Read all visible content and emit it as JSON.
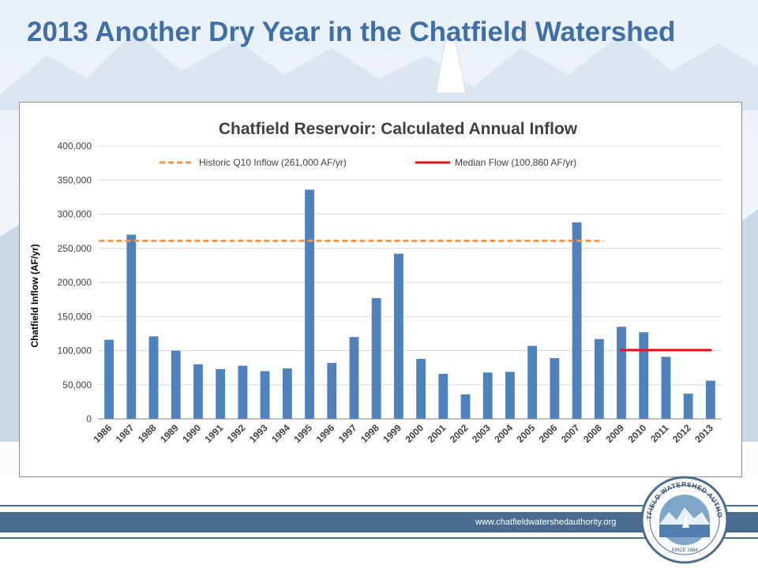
{
  "slide": {
    "title": "2013 Another Dry Year in the Chatfield Watershed",
    "website": "www.chatfieldwatershedauthority.org"
  },
  "logo": {
    "ring_text": "CHATFIELD WATERSHED AUTHORITY",
    "since_text": "SINCE 1984"
  },
  "colors": {
    "title": "#3f6fa6",
    "bar": "#4f81bd",
    "q10_line": "#f79646",
    "median_line": "#e0151c",
    "footer": "#4b6c8e"
  },
  "chart_data": {
    "type": "bar",
    "title": "Chatfield Reservoir: Calculated Annual Inflow",
    "xlabel": "",
    "ylabel": "Chatfield Inflow (AF/yr)",
    "ylim": [
      0,
      400000
    ],
    "yticks": [
      0,
      50000,
      100000,
      150000,
      200000,
      250000,
      300000,
      350000,
      400000
    ],
    "ytick_labels": [
      "0",
      "50,000",
      "100,000",
      "150,000",
      "200,000",
      "250,000",
      "300,000",
      "350,000",
      "400,000"
    ],
    "grid": true,
    "legend_position": "top",
    "categories": [
      "1986",
      "1987",
      "1988",
      "1989",
      "1990",
      "1991",
      "1992",
      "1993",
      "1994",
      "1995",
      "1996",
      "1997",
      "1998",
      "1999",
      "2000",
      "2001",
      "2002",
      "2003",
      "2004",
      "2005",
      "2006",
      "2007",
      "2008",
      "2009",
      "2010",
      "2011",
      "2012",
      "2013"
    ],
    "series": [
      {
        "values": [
          116000,
          270000,
          121000,
          100000,
          80000,
          73000,
          78000,
          70000,
          74000,
          336000,
          82000,
          120000,
          177000,
          242000,
          88000,
          66000,
          36000,
          68000,
          69000,
          107000,
          89000,
          288000,
          117000,
          135000,
          127000,
          91000,
          37000,
          56000
        ]
      }
    ],
    "reference_lines": [
      {
        "name": "Historic Q10 Inflow (261,000 AF/yr)",
        "value": 261000,
        "x_start": "1986",
        "x_end": "2008",
        "style": "dashed"
      },
      {
        "name": "Median Flow (100,860 AF/yr)",
        "value": 100860,
        "x_start": "2009",
        "x_end": "2013",
        "style": "solid"
      }
    ]
  }
}
